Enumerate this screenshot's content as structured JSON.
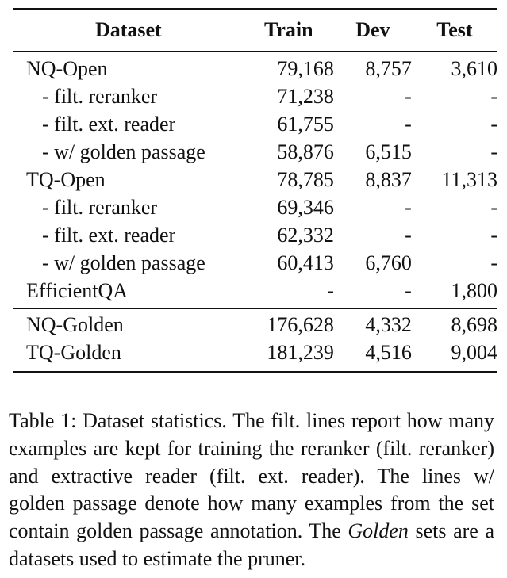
{
  "table": {
    "headers": [
      "Dataset",
      "Train",
      "Dev",
      "Test"
    ],
    "section1": [
      {
        "name": "NQ-Open",
        "sub": false,
        "train": "79,168",
        "dev": "8,757",
        "test": "3,610"
      },
      {
        "name": "- filt. reranker",
        "sub": true,
        "train": "71,238",
        "dev": "-",
        "test": "-"
      },
      {
        "name": "- filt. ext. reader",
        "sub": true,
        "train": "61,755",
        "dev": "-",
        "test": "-"
      },
      {
        "name": "- w/ golden passage",
        "sub": true,
        "train": "58,876",
        "dev": "6,515",
        "test": "-"
      },
      {
        "name": "TQ-Open",
        "sub": false,
        "train": "78,785",
        "dev": "8,837",
        "test": "11,313"
      },
      {
        "name": "- filt. reranker",
        "sub": true,
        "train": "69,346",
        "dev": "-",
        "test": "-"
      },
      {
        "name": "- filt. ext. reader",
        "sub": true,
        "train": "62,332",
        "dev": "-",
        "test": "-"
      },
      {
        "name": "- w/ golden passage",
        "sub": true,
        "train": "60,413",
        "dev": "6,760",
        "test": "-"
      },
      {
        "name": "EfficientQA",
        "sub": false,
        "train": "-",
        "dev": "-",
        "test": "1,800"
      }
    ],
    "section2": [
      {
        "name": "NQ-Golden",
        "sub": false,
        "train": "176,628",
        "dev": "4,332",
        "test": "8,698"
      },
      {
        "name": "TQ-Golden",
        "sub": false,
        "train": "181,239",
        "dev": "4,516",
        "test": "9,004"
      }
    ]
  },
  "caption": {
    "label": "Table 1:",
    "text1": " Dataset statistics.  The filt. lines report how many examples are kept for training the reranker (filt. reranker) and extractive reader (filt. ext. reader). The lines w/ golden passage denote how many examples from the set contain golden passage annotation.  The ",
    "italic": "Golden",
    "text2": " sets are a datasets used to estimate the pruner."
  }
}
